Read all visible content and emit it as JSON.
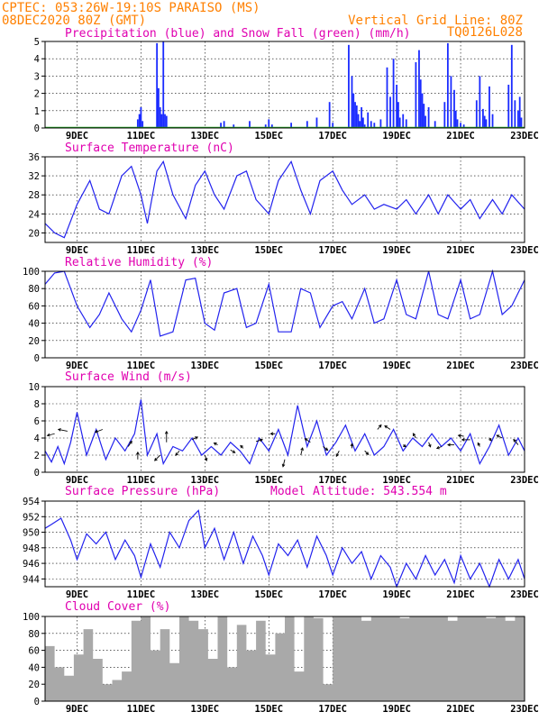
{
  "header": {
    "left_line1": "CPTEC:   053:26W-19:10S  PARAISO (MS)",
    "left_line2": "08DEC2020 80Z (GMT)",
    "right_line1": "Vertical Grid Line: 80Z",
    "right_line2": "TQ0126L028"
  },
  "colors": {
    "header": "#ff8000",
    "panel_title": "#e000b0",
    "precip": "#1a2bff",
    "snow": "#22aa22",
    "line": "#2222ee",
    "cloud": "#a9a9a9"
  },
  "x_axis": {
    "day_range": [
      8.0,
      23.0
    ],
    "ticks": [
      {
        "label": "9DEC",
        "day": 9
      },
      {
        "label": "11DEC",
        "day": 11
      },
      {
        "label": "13DEC",
        "day": 13
      },
      {
        "label": "15DEC",
        "day": 15
      },
      {
        "label": "17DEC",
        "day": 17
      },
      {
        "label": "19DEC",
        "day": 19
      },
      {
        "label": "21DEC",
        "day": 21
      },
      {
        "label": "23DEC",
        "day": 23
      }
    ]
  },
  "chart_data": [
    {
      "type": "bar",
      "title": "Precipitation (blue) and Snow Fall (green) (mm/h)",
      "ylim": [
        0,
        5
      ],
      "yticks": [
        "0",
        "1",
        "2",
        "3",
        "4",
        "5"
      ],
      "series": [
        {
          "name": "Precipitation",
          "x": [
            10.9,
            10.95,
            11.0,
            11.05,
            11.5,
            11.55,
            11.6,
            11.65,
            11.7,
            11.75,
            11.8,
            13.5,
            13.6,
            13.9,
            14.4,
            14.9,
            15.0,
            15.1,
            15.7,
            16.2,
            16.5,
            16.9,
            17.0,
            17.5,
            17.6,
            17.65,
            17.7,
            17.75,
            17.8,
            17.85,
            17.9,
            17.95,
            18.0,
            18.1,
            18.2,
            18.3,
            18.5,
            18.7,
            18.8,
            18.9,
            19.0,
            19.05,
            19.1,
            19.2,
            19.3,
            19.6,
            19.7,
            19.75,
            19.8,
            19.85,
            19.9,
            20.0,
            20.2,
            20.5,
            20.6,
            20.7,
            20.8,
            20.85,
            20.9,
            21.0,
            21.1,
            21.5,
            21.6,
            21.7,
            21.75,
            21.8,
            21.9,
            22.0,
            22.5,
            22.6,
            22.7,
            22.8,
            22.85,
            22.9
          ],
          "values": [
            0.5,
            0.8,
            1.2,
            0.4,
            4.9,
            2.3,
            1.2,
            0.8,
            5.0,
            0.8,
            0.7,
            0.3,
            0.4,
            0.2,
            0.4,
            0.2,
            0.5,
            0.2,
            0.3,
            0.4,
            0.6,
            1.5,
            0.3,
            4.8,
            3.0,
            2.0,
            1.5,
            1.3,
            0.8,
            0.4,
            1.2,
            0.6,
            0.2,
            0.9,
            0.4,
            0.3,
            0.5,
            3.5,
            1.8,
            4.0,
            2.5,
            1.5,
            0.6,
            0.8,
            0.5,
            3.8,
            4.5,
            2.8,
            2.0,
            1.4,
            0.7,
            1.2,
            0.4,
            1.5,
            4.9,
            3.0,
            2.2,
            1.0,
            0.5,
            0.3,
            0.2,
            1.6,
            3.0,
            1.1,
            0.7,
            0.5,
            2.4,
            0.8,
            2.5,
            4.8,
            1.6,
            1.0,
            1.8,
            0.6
          ]
        },
        {
          "name": "Snow Fall",
          "x": [],
          "values": []
        }
      ]
    },
    {
      "type": "line",
      "title": "Surface Temperature (nC)",
      "ylim": [
        18,
        36
      ],
      "yticks": [
        "20",
        "24",
        "28",
        "32",
        "36"
      ],
      "x": [
        8.0,
        8.3,
        8.6,
        9.0,
        9.4,
        9.7,
        10.0,
        10.4,
        10.7,
        11.0,
        11.2,
        11.5,
        11.7,
        12.0,
        12.4,
        12.7,
        13.0,
        13.3,
        13.6,
        14.0,
        14.3,
        14.6,
        15.0,
        15.3,
        15.7,
        16.0,
        16.3,
        16.6,
        17.0,
        17.3,
        17.6,
        18.0,
        18.3,
        18.6,
        19.0,
        19.3,
        19.6,
        20.0,
        20.3,
        20.6,
        21.0,
        21.3,
        21.6,
        22.0,
        22.3,
        22.6,
        23.0
      ],
      "values": [
        22,
        20,
        19,
        26,
        31,
        25,
        24,
        32,
        34,
        28,
        22,
        33,
        35,
        28,
        23,
        30,
        33,
        28,
        25,
        32,
        33,
        27,
        24,
        31,
        35,
        29,
        24,
        31,
        33,
        29,
        26,
        28,
        25,
        26,
        25,
        27,
        24,
        28,
        24,
        28,
        25,
        27,
        23,
        27,
        24,
        28,
        25
      ]
    },
    {
      "type": "line",
      "title": "Relative Humidity (%)",
      "ylim": [
        0,
        100
      ],
      "yticks": [
        "0",
        "20",
        "40",
        "60",
        "80",
        "100"
      ],
      "x": [
        8.0,
        8.3,
        8.6,
        9.0,
        9.4,
        9.7,
        10.0,
        10.4,
        10.7,
        11.0,
        11.3,
        11.6,
        12.0,
        12.4,
        12.7,
        13.0,
        13.3,
        13.6,
        14.0,
        14.3,
        14.6,
        15.0,
        15.3,
        15.7,
        16.0,
        16.3,
        16.6,
        17.0,
        17.3,
        17.6,
        18.0,
        18.3,
        18.6,
        19.0,
        19.3,
        19.6,
        20.0,
        20.3,
        20.6,
        21.0,
        21.3,
        21.6,
        22.0,
        22.3,
        22.6,
        23.0
      ],
      "values": [
        85,
        98,
        100,
        60,
        35,
        50,
        75,
        45,
        30,
        55,
        90,
        25,
        30,
        90,
        92,
        40,
        32,
        75,
        80,
        35,
        40,
        85,
        30,
        30,
        80,
        75,
        35,
        60,
        65,
        45,
        80,
        40,
        45,
        90,
        50,
        45,
        100,
        50,
        45,
        90,
        45,
        50,
        100,
        50,
        60,
        90
      ]
    },
    {
      "type": "line",
      "title": "Surface Wind (m/s)",
      "ylim": [
        0,
        10
      ],
      "yticks": [
        "0",
        "2",
        "4",
        "6",
        "8",
        "10"
      ],
      "x": [
        8.0,
        8.2,
        8.4,
        8.6,
        8.8,
        9.0,
        9.3,
        9.6,
        9.9,
        10.2,
        10.5,
        10.8,
        11.0,
        11.2,
        11.5,
        11.7,
        12.0,
        12.3,
        12.6,
        12.9,
        13.2,
        13.5,
        13.8,
        14.1,
        14.4,
        14.7,
        15.0,
        15.3,
        15.6,
        15.9,
        16.2,
        16.5,
        16.8,
        17.1,
        17.4,
        17.7,
        18.0,
        18.3,
        18.6,
        18.9,
        19.2,
        19.5,
        19.8,
        20.1,
        20.4,
        20.7,
        21.0,
        21.3,
        21.6,
        21.9,
        22.2,
        22.5,
        22.8,
        23.0
      ],
      "values": [
        2.5,
        1.2,
        3.0,
        1.0,
        3.5,
        7.0,
        2.0,
        5.0,
        1.5,
        4.0,
        2.5,
        4.5,
        8.5,
        2.0,
        4.5,
        1.0,
        3.0,
        2.5,
        4.0,
        2.0,
        3.0,
        2.0,
        3.5,
        2.5,
        1.0,
        4.0,
        2.5,
        5.0,
        2.0,
        7.8,
        3.0,
        6.0,
        2.0,
        3.5,
        5.5,
        2.5,
        4.5,
        2.0,
        3.0,
        5.0,
        2.5,
        4.0,
        3.0,
        4.5,
        3.0,
        4.0,
        2.5,
        4.5,
        1.0,
        3.0,
        5.5,
        2.0,
        4.0,
        2.5
      ]
    },
    {
      "type": "line",
      "title": "Surface Pressure (hPa)",
      "subtitle": "Model Altitude: 543.554 m",
      "ylim": [
        943,
        954
      ],
      "yticks": [
        "944",
        "946",
        "948",
        "950",
        "952",
        "954"
      ],
      "x": [
        8.0,
        8.2,
        8.5,
        8.8,
        9.0,
        9.3,
        9.6,
        9.9,
        10.2,
        10.5,
        10.8,
        11.0,
        11.3,
        11.6,
        11.9,
        12.2,
        12.5,
        12.8,
        13.0,
        13.3,
        13.6,
        13.9,
        14.2,
        14.5,
        14.8,
        15.0,
        15.3,
        15.6,
        15.9,
        16.2,
        16.5,
        16.8,
        17.0,
        17.3,
        17.6,
        17.9,
        18.2,
        18.5,
        18.8,
        19.0,
        19.3,
        19.6,
        19.9,
        20.2,
        20.5,
        20.8,
        21.0,
        21.3,
        21.6,
        21.9,
        22.2,
        22.5,
        22.8,
        23.0
      ],
      "values": [
        950.5,
        951.0,
        951.8,
        949.0,
        946.5,
        949.8,
        948.5,
        950.0,
        946.5,
        949.0,
        947.0,
        944.2,
        948.5,
        945.5,
        950.0,
        948.0,
        951.5,
        952.8,
        948.0,
        950.5,
        946.5,
        950.0,
        946.0,
        949.5,
        947.0,
        944.5,
        948.5,
        947.0,
        949.0,
        945.5,
        949.5,
        947.0,
        944.5,
        948.0,
        946.0,
        947.5,
        944.0,
        947.0,
        945.5,
        943.0,
        946.0,
        944.0,
        947.0,
        944.5,
        946.5,
        943.5,
        947.0,
        944.0,
        946.0,
        943.0,
        946.5,
        944.0,
        946.5,
        944.0
      ]
    },
    {
      "type": "area",
      "title": "Cloud Cover (%)",
      "ylim": [
        0,
        100
      ],
      "yticks": [
        "0",
        "20",
        "40",
        "60",
        "80",
        "100"
      ],
      "x": [
        8.0,
        8.3,
        8.6,
        8.9,
        9.2,
        9.5,
        9.8,
        10.1,
        10.4,
        10.7,
        11.0,
        11.3,
        11.6,
        11.9,
        12.2,
        12.5,
        12.8,
        13.1,
        13.4,
        13.7,
        14.0,
        14.3,
        14.6,
        14.9,
        15.2,
        15.5,
        15.8,
        16.1,
        16.4,
        16.7,
        17.0,
        17.3,
        17.6,
        17.9,
        18.2,
        18.5,
        18.8,
        19.1,
        19.4,
        19.7,
        20.0,
        20.3,
        20.6,
        20.9,
        21.2,
        21.5,
        21.8,
        22.1,
        22.4,
        22.7,
        23.0
      ],
      "values": [
        65,
        40,
        30,
        55,
        85,
        50,
        20,
        25,
        35,
        95,
        100,
        60,
        85,
        45,
        100,
        95,
        85,
        50,
        100,
        40,
        90,
        60,
        95,
        55,
        80,
        100,
        35,
        100,
        98,
        20,
        100,
        100,
        100,
        95,
        100,
        100,
        100,
        98,
        100,
        100,
        100,
        100,
        95,
        100,
        100,
        100,
        98,
        100,
        95,
        100,
        100
      ]
    }
  ]
}
